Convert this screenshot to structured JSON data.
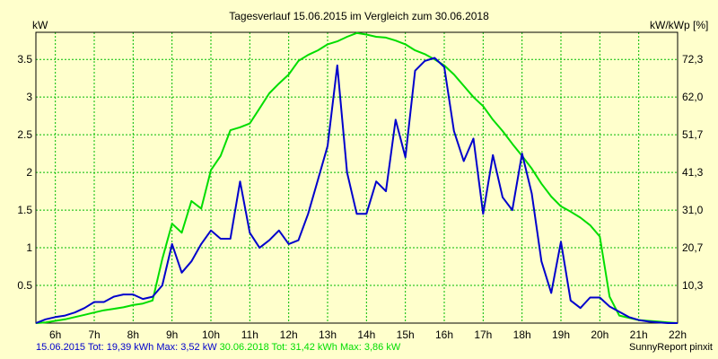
{
  "chart_data": {
    "type": "line",
    "title": "Tagesverlauf 15.06.2015 im Vergleich zum 30.06.2018",
    "ylabel_left": "kW",
    "ylabel_right": "kW/kWp [%]",
    "xlim": [
      5.5,
      22.0
    ],
    "ylim": [
      0,
      3.86
    ],
    "x_ticks": [
      "6h",
      "7h",
      "8h",
      "9h",
      "10h",
      "11h",
      "12h",
      "13h",
      "14h",
      "15h",
      "16h",
      "17h",
      "18h",
      "19h",
      "20h",
      "21h",
      "22h"
    ],
    "y_ticks_left": [
      {
        "value": 0.5,
        "label": "0.5"
      },
      {
        "value": 1.0,
        "label": "1"
      },
      {
        "value": 1.5,
        "label": "1.5"
      },
      {
        "value": 2.0,
        "label": "2"
      },
      {
        "value": 2.5,
        "label": "2.5"
      },
      {
        "value": 3.0,
        "label": "3"
      },
      {
        "value": 3.5,
        "label": "3.5"
      }
    ],
    "y_ticks_right": [
      {
        "value": 0.5,
        "label": "10,3"
      },
      {
        "value": 1.0,
        "label": "20,7"
      },
      {
        "value": 1.5,
        "label": "31,0"
      },
      {
        "value": 2.0,
        "label": "41,3"
      },
      {
        "value": 2.5,
        "label": "51,7"
      },
      {
        "value": 3.0,
        "label": "62,0"
      },
      {
        "value": 3.5,
        "label": "72,3"
      }
    ],
    "grid": true,
    "series": [
      {
        "name": "15.06.2015",
        "color": "#0000cc",
        "x": [
          5.5,
          5.75,
          6.0,
          6.25,
          6.5,
          6.75,
          7.0,
          7.25,
          7.5,
          7.75,
          8.0,
          8.25,
          8.5,
          8.75,
          9.0,
          9.25,
          9.5,
          9.75,
          10.0,
          10.25,
          10.5,
          10.75,
          11.0,
          11.25,
          11.5,
          11.75,
          12.0,
          12.25,
          12.5,
          12.75,
          13.0,
          13.25,
          13.5,
          13.75,
          14.0,
          14.25,
          14.5,
          14.75,
          15.0,
          15.25,
          15.5,
          15.75,
          16.0,
          16.25,
          16.5,
          16.75,
          17.0,
          17.25,
          17.5,
          17.75,
          18.0,
          18.25,
          18.5,
          18.75,
          19.0,
          19.25,
          19.5,
          19.75,
          20.0,
          20.25,
          20.5,
          20.75,
          21.0,
          21.25,
          21.5,
          21.75,
          22.0
        ],
        "values": [
          0.0,
          0.05,
          0.08,
          0.1,
          0.14,
          0.2,
          0.28,
          0.28,
          0.35,
          0.38,
          0.38,
          0.32,
          0.35,
          0.5,
          1.05,
          0.67,
          0.82,
          1.05,
          1.23,
          1.12,
          1.12,
          1.88,
          1.2,
          1.0,
          1.1,
          1.23,
          1.05,
          1.1,
          1.45,
          1.9,
          2.35,
          3.42,
          2.0,
          1.45,
          1.45,
          1.88,
          1.75,
          2.7,
          2.2,
          3.35,
          3.48,
          3.52,
          3.4,
          2.55,
          2.15,
          2.45,
          1.45,
          2.23,
          1.67,
          1.5,
          2.25,
          1.72,
          0.82,
          0.4,
          1.08,
          0.3,
          0.2,
          0.34,
          0.34,
          0.22,
          0.15,
          0.08,
          0.04,
          0.02,
          0.01,
          0.0,
          0.0
        ]
      },
      {
        "name": "30.06.2018",
        "color": "#00dd00",
        "x": [
          5.5,
          5.75,
          6.0,
          6.25,
          6.5,
          6.75,
          7.0,
          7.25,
          7.5,
          7.75,
          8.0,
          8.25,
          8.5,
          8.75,
          9.0,
          9.25,
          9.5,
          9.75,
          10.0,
          10.25,
          10.5,
          10.75,
          11.0,
          11.25,
          11.5,
          11.75,
          12.0,
          12.25,
          12.5,
          12.75,
          13.0,
          13.25,
          13.5,
          13.75,
          14.0,
          14.25,
          14.5,
          14.75,
          15.0,
          15.25,
          15.5,
          15.75,
          16.0,
          16.25,
          16.5,
          16.75,
          17.0,
          17.25,
          17.5,
          17.75,
          18.0,
          18.25,
          18.5,
          18.75,
          19.0,
          19.25,
          19.5,
          19.75,
          20.0,
          20.25,
          20.5,
          20.75,
          21.0,
          21.25,
          21.5,
          21.75,
          22.0
        ],
        "values": [
          0.0,
          0.01,
          0.03,
          0.05,
          0.08,
          0.11,
          0.14,
          0.17,
          0.19,
          0.21,
          0.24,
          0.26,
          0.3,
          0.85,
          1.32,
          1.2,
          1.62,
          1.52,
          2.03,
          2.22,
          2.56,
          2.6,
          2.65,
          2.85,
          3.05,
          3.18,
          3.3,
          3.48,
          3.56,
          3.62,
          3.7,
          3.74,
          3.8,
          3.85,
          3.83,
          3.8,
          3.79,
          3.75,
          3.7,
          3.62,
          3.57,
          3.5,
          3.42,
          3.3,
          3.15,
          3.0,
          2.88,
          2.7,
          2.55,
          2.38,
          2.22,
          2.05,
          1.85,
          1.68,
          1.55,
          1.48,
          1.4,
          1.3,
          1.15,
          0.35,
          0.1,
          0.07,
          0.04,
          0.03,
          0.02,
          0.01,
          0.0
        ]
      }
    ]
  },
  "footer": {
    "left_series1": "15.06.2015 Tot: 19,39 kWh Max: 3,52 kW",
    "left_series2": "30.06.2018 Tot: 31,42 kWh Max: 3,86 kW",
    "right": "SunnyReport pinxit"
  }
}
